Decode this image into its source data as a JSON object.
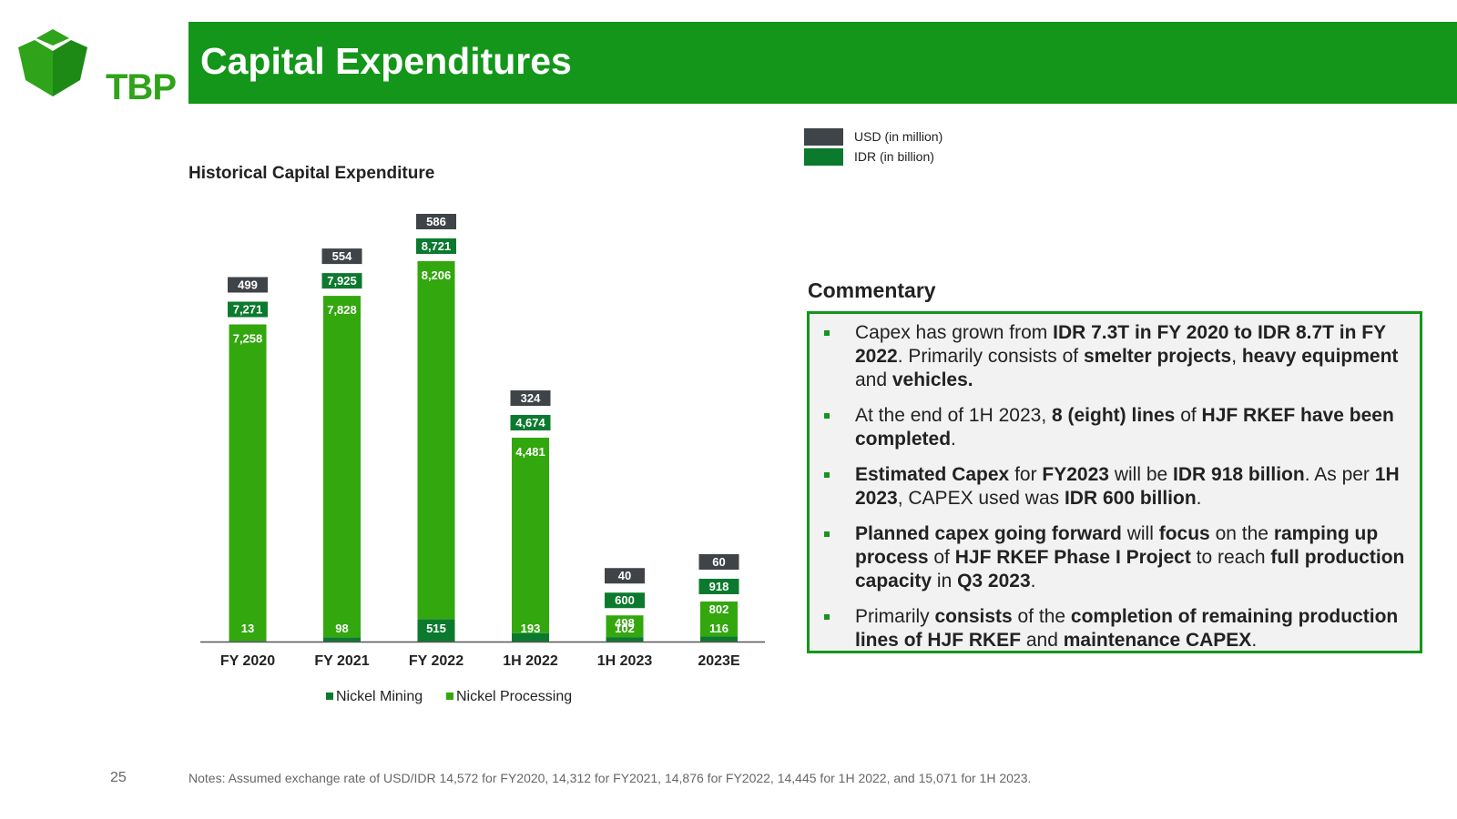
{
  "brand": {
    "logo_text": "TBP",
    "color_primary": "#13961a",
    "color_mining": "#0b7a2e",
    "color_processing": "#33a70e",
    "color_usd": "#3f4448",
    "color_idr": "#0b7a2e"
  },
  "header": {
    "title": "Capital Expenditures"
  },
  "subtitle": "Historical Capital Expenditure",
  "legend_top": {
    "usd": "USD (in million)",
    "idr": "IDR (in billion)"
  },
  "chart_data": {
    "type": "bar",
    "stacked": true,
    "categories": [
      "FY 2020",
      "FY 2021",
      "FY 2022",
      "1H 2022",
      "1H 2023",
      "2023E"
    ],
    "series": [
      {
        "name": "Nickel Mining",
        "values": [
          13,
          98,
          515,
          193,
          102,
          116
        ],
        "labels": [
          "13",
          "98",
          "515",
          "193",
          "102",
          "116"
        ]
      },
      {
        "name": "Nickel Processing",
        "values": [
          7258,
          7828,
          8206,
          4481,
          498,
          802
        ],
        "labels": [
          "7,258",
          "7,828",
          "8,206",
          "4,481",
          "498",
          "802"
        ]
      }
    ],
    "totals_idr_billion": [
      "7,271",
      "7,925",
      "8,721",
      "4,674",
      "600",
      "918"
    ],
    "totals_usd_million": [
      "499",
      "554",
      "586",
      "324",
      "40",
      "60"
    ],
    "ylim": [
      0,
      8721
    ],
    "legend_position": "bottom"
  },
  "commentary": {
    "title": "Commentary",
    "bullets": [
      [
        {
          "t": "Capex has grown from ",
          "b": false
        },
        {
          "t": "IDR 7.3T in FY 2020 to IDR 8.7T in FY 2022",
          "b": true
        },
        {
          "t": ". Primarily consists of ",
          "b": false
        },
        {
          "t": "smelter projects",
          "b": true
        },
        {
          "t": ", ",
          "b": false
        },
        {
          "t": "heavy equipment",
          "b": true
        },
        {
          "t": " and ",
          "b": false
        },
        {
          "t": "vehicles.",
          "b": true
        }
      ],
      [
        {
          "t": "At the end of 1H 2023, ",
          "b": false
        },
        {
          "t": "8 (eight) lines",
          "b": true
        },
        {
          "t": " of ",
          "b": false
        },
        {
          "t": "HJF RKEF have been completed",
          "b": true
        },
        {
          "t": ".",
          "b": false
        }
      ],
      [
        {
          "t": "Estimated Capex",
          "b": true
        },
        {
          "t": " for ",
          "b": false
        },
        {
          "t": "FY2023",
          "b": true
        },
        {
          "t": " will be ",
          "b": false
        },
        {
          "t": "IDR 918 billion",
          "b": true
        },
        {
          "t": ". As per ",
          "b": false
        },
        {
          "t": "1H 2023",
          "b": true
        },
        {
          "t": ", CAPEX used was ",
          "b": false
        },
        {
          "t": "IDR 600 billion",
          "b": true
        },
        {
          "t": ".",
          "b": false
        }
      ],
      [
        {
          "t": "Planned capex going forward",
          "b": true
        },
        {
          "t": " will ",
          "b": false
        },
        {
          "t": "focus",
          "b": true
        },
        {
          "t": " on the ",
          "b": false
        },
        {
          "t": "ramping up process",
          "b": true
        },
        {
          "t": " of ",
          "b": false
        },
        {
          "t": "HJF RKEF Phase I Project",
          "b": true
        },
        {
          "t": " to reach ",
          "b": false
        },
        {
          "t": "full production capacity",
          "b": true
        },
        {
          "t": " in ",
          "b": false
        },
        {
          "t": "Q3 2023",
          "b": true
        },
        {
          "t": ".",
          "b": false
        }
      ],
      [
        {
          "t": "Primarily ",
          "b": false
        },
        {
          "t": "consists",
          "b": true
        },
        {
          "t": " of the ",
          "b": false
        },
        {
          "t": "completion of remaining production lines of HJF RKEF",
          "b": true
        },
        {
          "t": " and ",
          "b": false
        },
        {
          "t": "maintenance CAPEX",
          "b": true
        },
        {
          "t": ".",
          "b": false
        }
      ]
    ]
  },
  "footer": {
    "page_number": "25",
    "notes": "Notes: Assumed exchange rate of USD/IDR 14,572 for FY2020, 14,312 for FY2021, 14,876 for FY2022, 14,445 for 1H 2022, and 15,071 for 1H 2023."
  }
}
